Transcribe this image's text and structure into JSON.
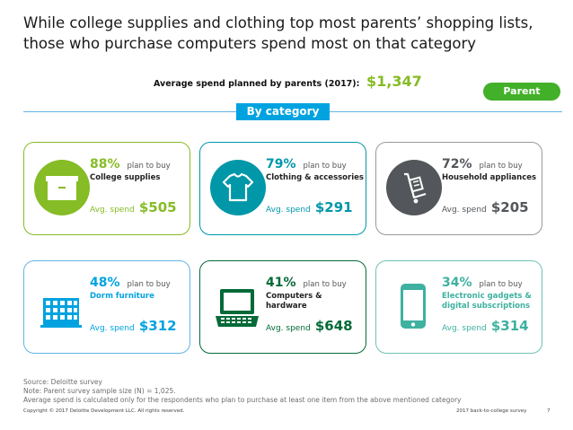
{
  "title": "While college supplies and clothing top most parents’ shopping lists, those who purchase computers spend most on that category",
  "average_spend": {
    "label": "Average spend planned by parents (2017):",
    "value": "$1,347"
  },
  "badge": "Parent",
  "section_label": "By category",
  "plan_text": "plan to buy",
  "spend_text": "Avg. spend",
  "colors": {
    "green": "#86bc25",
    "teal": "#0097a9",
    "gray": "#53565a",
    "blue": "#00a3e0",
    "darkgreen": "#046a38",
    "lightgreen": "#43b02a"
  },
  "cards": [
    {
      "pct": "88%",
      "name": "College supplies",
      "spend": "$505",
      "icon": "box-icon"
    },
    {
      "pct": "79%",
      "name": "Clothing & accessories",
      "spend": "$291",
      "icon": "tshirt-icon"
    },
    {
      "pct": "72%",
      "name": "Household appliances",
      "spend": "$205",
      "icon": "cart-icon"
    },
    {
      "pct": "48%",
      "name": "Dorm furniture",
      "spend": "$312",
      "icon": "building-icon"
    },
    {
      "pct": "41%",
      "name": "Computers & hardware",
      "spend": "$648",
      "icon": "laptop-icon"
    },
    {
      "pct": "34%",
      "name": "Electronic gadgets & digital subscriptions",
      "spend": "$314",
      "icon": "phone-icon"
    }
  ],
  "source": {
    "line1": "Source: Deloitte survey",
    "line2": "Note:  Parent survey sample size (N) = 1,025.",
    "line3": "Average spend is calculated only for the respondents who plan to purchase at least one item from the above mentioned category"
  },
  "footer": {
    "copyright": "Copyright © 2017 Deloitte Development LLC. All rights reserved.",
    "survey": "2017 back-to-college survey",
    "page": "7"
  }
}
